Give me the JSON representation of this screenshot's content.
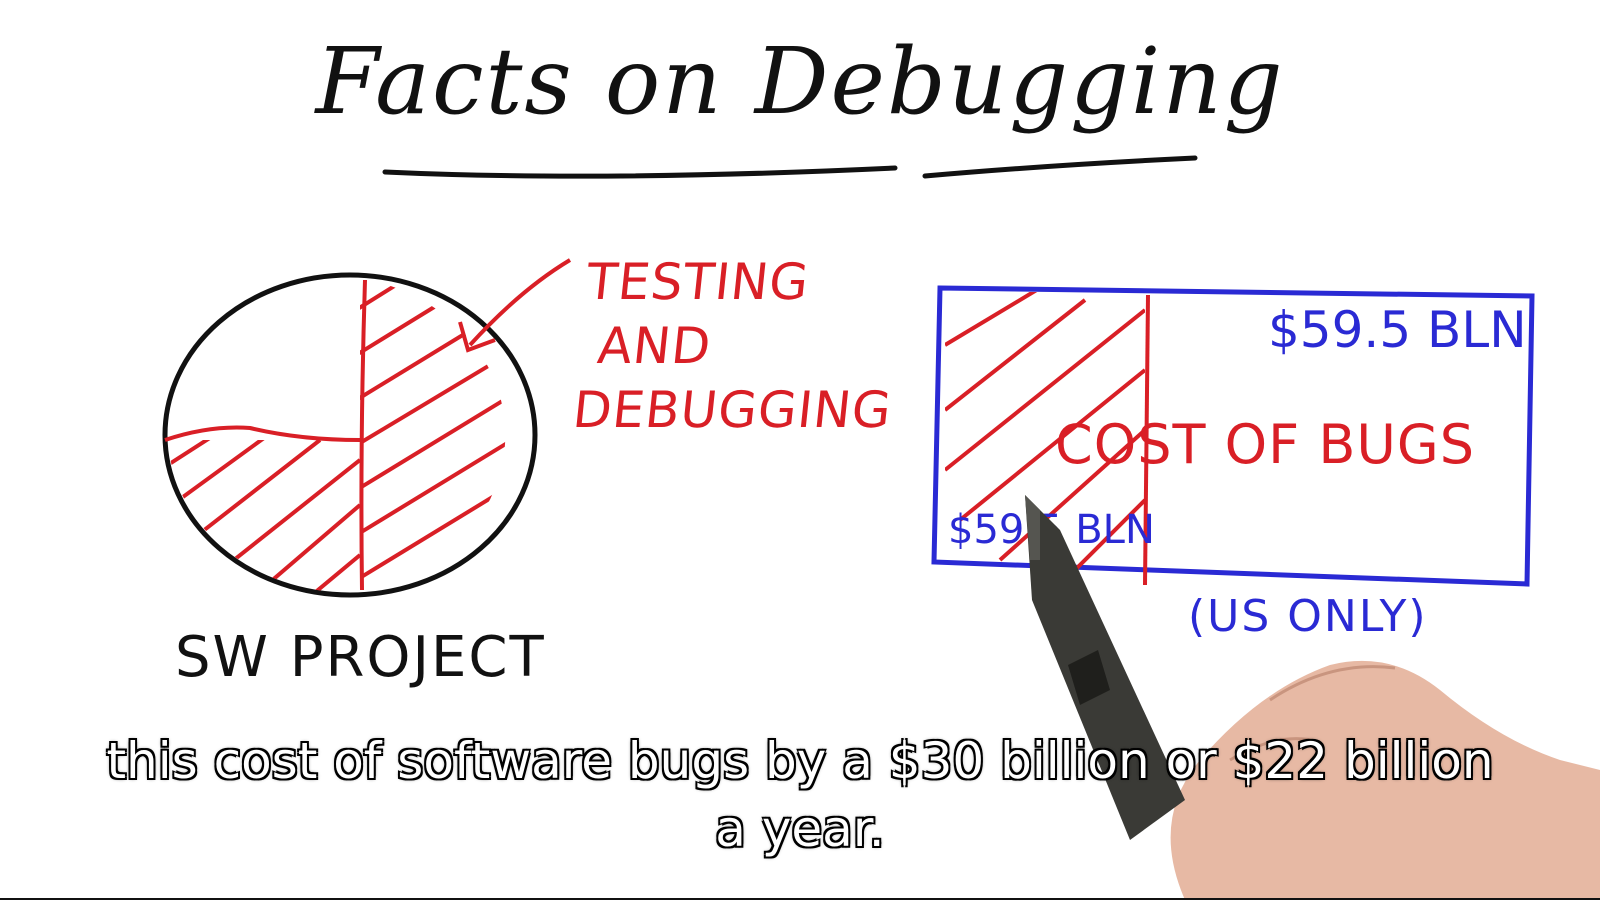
{
  "title": "Facts on Debugging",
  "pie": {
    "callout_label": [
      "TESTING",
      "AND",
      "DEBUGGING"
    ],
    "caption": "SW PROJECT"
  },
  "cost_box": {
    "top_value": "$59.5 BLN",
    "inner_label": "COST OF BUGS",
    "bottom_value": "$59.5 BLN",
    "region_note": "(US ONLY)"
  },
  "subtitles": {
    "line1": "this cost of software bugs by a $30 billion or $22 billion",
    "line2": "a year."
  },
  "colors": {
    "ink_black": "#111111",
    "ink_red": "#d91f26",
    "ink_blue": "#2a2ad4"
  },
  "icons": {
    "pen": "stylus-pen-icon",
    "hand": "hand-icon"
  }
}
